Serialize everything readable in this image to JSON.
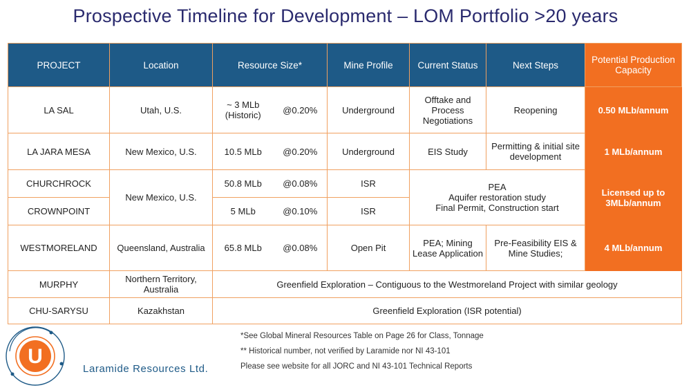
{
  "title": "Prospective Timeline for Development – LOM Portfolio >20 years",
  "headers": {
    "project": "PROJECT",
    "location": "Location",
    "resource_size": "Resource Size*",
    "mine_profile": "Mine Profile",
    "current_status": "Current Status",
    "next_steps": "Next Steps",
    "capacity": "Potential Production Capacity"
  },
  "rows": {
    "la_sal": {
      "project": "LA SAL",
      "location": "Utah, U.S.",
      "size": "~ 3 MLb (Historic)",
      "grade": "@0.20%",
      "profile": "Underground",
      "status": "Offtake and Process Negotiations",
      "next": "Reopening",
      "capacity": "0.50 MLb/annum"
    },
    "la_jara": {
      "project": "LA JARA MESA",
      "location": "New Mexico, U.S.",
      "size": "10.5 MLb",
      "grade": "@0.20%",
      "profile": "Underground",
      "status": "EIS Study",
      "next": "Permitting & initial site development",
      "capacity": "1 MLb/annum"
    },
    "churchrock": {
      "project": "CHURCHROCK",
      "location": "New Mexico, U.S.",
      "size": "50.8 MLb",
      "grade": "@0.08%",
      "profile": "ISR",
      "status_merged_1": "PEA",
      "status_merged_2": "Aquifer restoration study",
      "status_merged_3": "Final Permit, Construction start",
      "capacity": "Licensed up to 3MLb/annum"
    },
    "crownpoint": {
      "project": "CROWNPOINT",
      "size": "5 MLb",
      "grade": "@0.10%",
      "profile": "ISR"
    },
    "westmoreland": {
      "project": "WESTMORELAND",
      "location": "Queensland, Australia",
      "size": "65.8 MLb",
      "grade": "@0.08%",
      "profile": "Open Pit",
      "status": "PEA; Mining Lease Application",
      "next": "Pre-Feasibility EIS & Mine Studies;",
      "capacity": "4 MLb/annum"
    },
    "murphy": {
      "project": "MURPHY",
      "location": "Northern Territory, Australia",
      "note": "Greenfield Exploration – Contiguous to the Westmoreland Project with similar geology"
    },
    "chu_sarysu": {
      "project": "CHU-SARYSU",
      "location": "Kazakhstan",
      "note": "Greenfield Exploration (ISR potential)"
    }
  },
  "footnotes": {
    "note1": "*See Global Mineral Resources Table on Page 26 for  Class, Tonnage",
    "note2": "** Historical number, not verified by Laramide nor NI 43-101",
    "note3": "Please see website for all JORC and NI 43-101 Technical Reports"
  },
  "company": {
    "name": "Laramide Resources Ltd.",
    "logo_letter": "U",
    "logo_icon": "laramide-u-logo-icon"
  },
  "colors": {
    "title": "#2a2a6e",
    "header_blue": "#1e5a87",
    "capacity_orange": "#f26f21",
    "border": "#f0a060"
  }
}
